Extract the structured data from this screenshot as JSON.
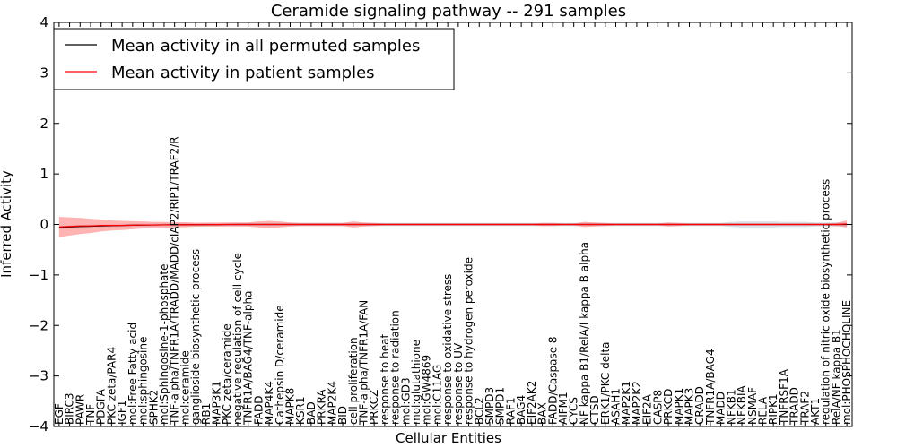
{
  "chart_data": {
    "type": "line",
    "title": "Ceramide signaling pathway -- 291 samples",
    "xlabel": "Cellular Entities",
    "ylabel": "Inferred Activity",
    "ylim": [
      -4,
      4
    ],
    "yticks": [
      -4,
      -3,
      -2,
      -1,
      0,
      1,
      2,
      3,
      4
    ],
    "grid": false,
    "legend_position": "top-left",
    "colors": {
      "permuted": "#000000",
      "patient": "#ff0000",
      "patient_band": "#ff8080",
      "permuted_band": "#c8c8d8"
    },
    "categories": [
      "EGF",
      "BIRC3",
      "PAWR",
      "TNF",
      "PDGFA",
      "PKC zeta/PAR4",
      "IGF1",
      "mol:Free Fatty acid",
      "mol:sphingosine",
      "SPHK2",
      "mol:Sphingosine-1-phosphate",
      "TNF-alpha/TNFR1A/TRADD/MADD/cIAP2/RIP1/TRAF2/R",
      "mol:ceramide",
      "ganglioside biosynthetic process",
      "RB1",
      "MAP3K1",
      "PKC zeta/ceramide",
      "negative regulation of cell cycle",
      "TNFR1A/BAG4/TNF-alpha",
      "FADD",
      "MAP4K4",
      "Cathepsin D/ceramide",
      "MAPK8",
      "KSR1",
      "BAD",
      "PRKRA",
      "MAP2K4",
      "BID",
      "cell proliferation",
      "TNF-alpha/TNFR1A/FAN",
      "PRKCZ",
      "response to heat",
      "response to radiation",
      "mol:GD3",
      "mol:glutathione",
      "mol:GW4869",
      "mol:C11AG",
      "response to oxidative stress",
      "response to UV",
      "response to hydrogen peroxide",
      "BCL2",
      "SMPD3",
      "SMPD1",
      "RAF1",
      "BAG4",
      "EIF2AK2",
      "BAX",
      "FADD/Caspase 8",
      "AIFM1",
      "CYCS",
      "NF kappa B1/RelA/I kappa B alpha",
      "CTSD",
      "ERK1/PKC delta",
      "ASAH1",
      "MAP2K1",
      "MAP2K2",
      "EIF2A",
      "CASP8",
      "PRKCD",
      "MAPK1",
      "MAPK3",
      "CRADD",
      "TNFR1A/BAG4",
      "MADD",
      "NFKB1",
      "NFKBIA",
      "NSMAF",
      "RELA",
      "RIPK1",
      "TNFRSF1A",
      "TRADD",
      "TRAF2",
      "AKT1",
      "regulation of nitric oxide biosynthetic process",
      "RelA/NF kappa B1",
      "mol:PHOSPHOCHOLINE"
    ],
    "series": [
      {
        "name": "Mean activity in all permuted samples",
        "values": [
          -0.06,
          -0.05,
          -0.04,
          -0.035,
          -0.03,
          -0.025,
          -0.02,
          -0.015,
          -0.012,
          -0.01,
          -0.008,
          -0.006,
          -0.005,
          -0.004,
          -0.003,
          -0.002,
          -0.001,
          0,
          0,
          0,
          0,
          0,
          0,
          0,
          0,
          0,
          0,
          0,
          0,
          0,
          0,
          0,
          0,
          0,
          0,
          0,
          0,
          0,
          0,
          0,
          0,
          0,
          0,
          0,
          0,
          0,
          0,
          0,
          0,
          0,
          0,
          0,
          0,
          0,
          0,
          0,
          0,
          0,
          0,
          0,
          0,
          0,
          0,
          0,
          0,
          0,
          0,
          0,
          0,
          0,
          0,
          0,
          0,
          0,
          0,
          0
        ],
        "band": [
          0.03,
          0.03,
          0.03,
          0.03,
          0.03,
          0.03,
          0.03,
          0.03,
          0.03,
          0.03,
          0.03,
          0.03,
          0.03,
          0.03,
          0.03,
          0.03,
          0.03,
          0.03,
          0.03,
          0.03,
          0.03,
          0.03,
          0.03,
          0.03,
          0.03,
          0.03,
          0.03,
          0.03,
          0.03,
          0.03,
          0.03,
          0.03,
          0.03,
          0.03,
          0.03,
          0.03,
          0.03,
          0.03,
          0.03,
          0.03,
          0.03,
          0.03,
          0.03,
          0.03,
          0.03,
          0.03,
          0.03,
          0.03,
          0.03,
          0.03,
          0.03,
          0.03,
          0.03,
          0.03,
          0.03,
          0.03,
          0.03,
          0.03,
          0.03,
          0.03,
          0.03,
          0.03,
          0.03,
          0.03,
          0.05,
          0.06,
          0.06,
          0.06,
          0.06,
          0.05,
          0.05,
          0.05,
          0.04,
          0.04,
          0.04,
          0.04
        ]
      },
      {
        "name": "Mean activity in patient samples",
        "values": [
          -0.05,
          -0.04,
          -0.03,
          -0.03,
          -0.02,
          -0.02,
          -0.02,
          -0.015,
          -0.01,
          -0.01,
          -0.008,
          -0.006,
          -0.005,
          -0.004,
          -0.003,
          -0.002,
          0,
          0,
          0,
          0,
          0,
          0,
          0,
          0,
          0,
          0,
          0,
          0,
          0,
          0,
          0,
          0,
          0,
          0,
          0,
          0,
          0,
          0,
          0,
          0,
          0,
          0,
          0,
          0,
          0,
          0,
          0,
          0,
          0,
          0,
          0,
          0,
          0,
          0,
          0,
          0,
          0,
          0,
          0,
          0,
          0,
          0,
          0,
          0,
          0,
          0,
          0,
          0,
          0,
          0,
          0,
          0,
          0,
          0,
          0,
          0.01
        ],
        "band": [
          0.2,
          0.18,
          0.16,
          0.14,
          0.12,
          0.1,
          0.09,
          0.08,
          0.07,
          0.06,
          0.06,
          0.05,
          0.05,
          0.04,
          0.04,
          0.04,
          0.04,
          0.04,
          0.04,
          0.06,
          0.07,
          0.06,
          0.04,
          0.03,
          0.03,
          0.03,
          0.03,
          0.03,
          0.06,
          0.04,
          0.03,
          0.02,
          0.02,
          0.02,
          0.02,
          0.02,
          0.02,
          0.02,
          0.02,
          0.02,
          0.02,
          0.02,
          0.02,
          0.02,
          0.02,
          0.02,
          0.03,
          0.03,
          0.02,
          0.02,
          0.05,
          0.04,
          0.03,
          0.02,
          0.02,
          0.02,
          0.02,
          0.02,
          0.04,
          0.03,
          0.02,
          0.02,
          0.02,
          0.02,
          0.02,
          0.02,
          0.02,
          0.02,
          0.02,
          0.02,
          0.02,
          0.02,
          0.02,
          0.02,
          0.03,
          0.07
        ]
      }
    ]
  }
}
